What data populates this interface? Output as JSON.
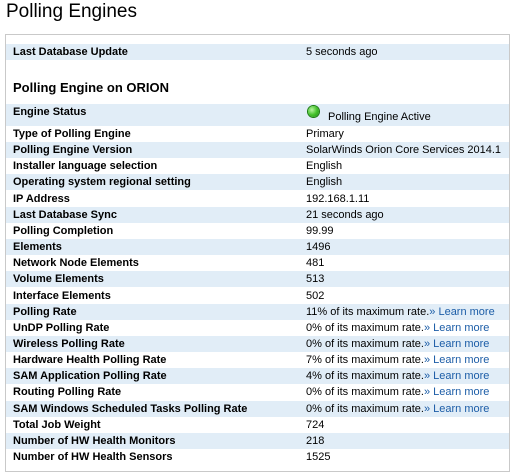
{
  "page_title": "Polling Engines",
  "status_icon_color": "#3cb22a",
  "learn_more_link_color": "#1c5da7",
  "last_db_update": {
    "label": "Last Database Update",
    "value": "5 seconds ago"
  },
  "section_title": "Polling Engine on ORION",
  "engine_status": {
    "label": "Engine Status",
    "value": "Polling Engine Active",
    "icon": "green-status-icon"
  },
  "rows": [
    {
      "label": "Type of Polling Engine",
      "value": "Primary"
    },
    {
      "label": "Polling Engine Version",
      "value": "SolarWinds Orion Core Services 2014.1"
    },
    {
      "label": "Installer language selection",
      "value": "English"
    },
    {
      "label": "Operating system regional setting",
      "value": "English"
    },
    {
      "label": "IP Address",
      "value": "192.168.1.11"
    },
    {
      "label": "Last Database Sync",
      "value": "21 seconds ago"
    },
    {
      "label": "Polling Completion",
      "value": "99.99"
    },
    {
      "label": "Elements",
      "value": "1496"
    },
    {
      "label": "Network Node Elements",
      "value": "481"
    },
    {
      "label": "Volume Elements",
      "value": "513"
    },
    {
      "label": "Interface Elements",
      "value": "502"
    },
    {
      "label": "Polling Rate",
      "value": "11% of its maximum rate.",
      "link": "» Learn more"
    },
    {
      "label": "UnDP Polling Rate",
      "value": "0% of its maximum rate.",
      "link": "» Learn more"
    },
    {
      "label": "Wireless Polling Rate",
      "value": "0% of its maximum rate.",
      "link": "» Learn more"
    },
    {
      "label": "Hardware Health Polling Rate",
      "value": "7% of its maximum rate.",
      "link": "» Learn more"
    },
    {
      "label": "SAM Application Polling Rate",
      "value": "4% of its maximum rate.",
      "link": "» Learn more"
    },
    {
      "label": "Routing Polling Rate",
      "value": "0% of its maximum rate.",
      "link": "» Learn more"
    },
    {
      "label": "SAM Windows Scheduled Tasks Polling Rate",
      "value": "0% of its maximum rate.",
      "link": "» Learn more"
    },
    {
      "label": "Total Job Weight",
      "value": "724"
    },
    {
      "label": "Number of HW Health Monitors",
      "value": "218"
    },
    {
      "label": "Number of HW Health Sensors",
      "value": "1525"
    }
  ]
}
